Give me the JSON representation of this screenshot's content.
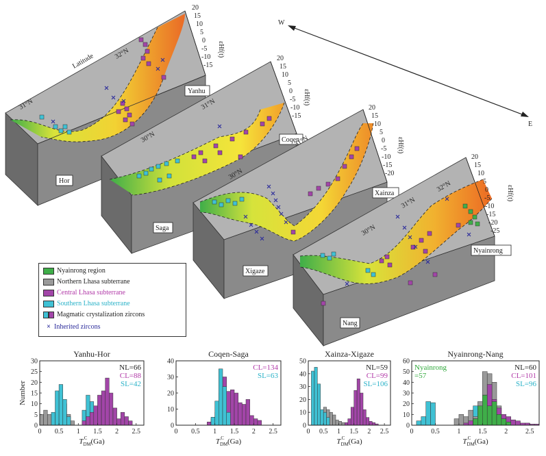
{
  "compass": {
    "w": "W",
    "e": "E"
  },
  "latitude_label": "Latitude",
  "eps_label": "εHf(t)",
  "panels": [
    {
      "name": "Yanhu",
      "start": "Hor",
      "lats": [
        "31°N",
        "32°N"
      ],
      "ticks": [
        "20",
        "15",
        "10",
        "5",
        "0",
        "-5",
        "-10",
        "-15"
      ]
    },
    {
      "name": "Coqen",
      "start": "Saga",
      "lats": [
        "30°N",
        "31°N"
      ],
      "ticks": [
        "20",
        "15",
        "10",
        "5",
        "0",
        "-5",
        "-10",
        "-15"
      ]
    },
    {
      "name": "Xainza",
      "start": "Xigaze",
      "lats": [
        "30°N",
        "31°N"
      ],
      "ticks": [
        "20",
        "15",
        "10",
        "5",
        "0",
        "-5",
        "-10",
        "-15",
        "-20"
      ]
    },
    {
      "name": "Nyainrong",
      "start": "Nang",
      "lats": [
        "30°N",
        "31°N",
        "32°N"
      ],
      "ticks": [
        "20",
        "15",
        "10",
        "5",
        "0",
        "-5",
        "-10",
        "-15",
        "-20",
        "-25"
      ]
    }
  ],
  "legend": [
    {
      "label": "Nyainrong region",
      "color": "#3fae49",
      "kind": "box"
    },
    {
      "label": "Northern  Lhasa subterrane",
      "color": "#9a9a9a",
      "kind": "box"
    },
    {
      "label": "Central  Lhasa subterrane",
      "color": "#a245a8",
      "kind": "box",
      "text_color": "#b23aa8"
    },
    {
      "label": "Southern  Lhasa subterrane",
      "color": "#3fc1d4",
      "kind": "box",
      "text_color": "#2ab2c8"
    },
    {
      "label": "Magmatic crystalization zircons",
      "color": "#3fc1d4",
      "kind": "double"
    },
    {
      "label": "Inherited zircons",
      "color": "#2a2a9a",
      "kind": "x",
      "text_color": "#2a2a9a"
    }
  ],
  "colors": {
    "nl": "#9a9a9a",
    "cl": "#a245a8",
    "sl": "#3fc1d4",
    "ny": "#3fae49",
    "cl_text": "#b23aa8",
    "sl_text": "#2ab2c8",
    "ny_text": "#2fa83a"
  },
  "chart_data": [
    {
      "type": "bar",
      "title": "Yanhu-Hor",
      "ylabel": "Number",
      "xlabel": "T_DM^C (Ga)",
      "xlim": [
        0,
        2.7
      ],
      "ylim": [
        0,
        30
      ],
      "bin_width": 0.1,
      "xticks": [
        "0",
        "0.5",
        "1",
        "1.5",
        "2",
        "2.5"
      ],
      "yticks": [
        "0",
        "5",
        "10",
        "15",
        "20",
        "25",
        "30"
      ],
      "stats": [
        {
          "text": "NL=66",
          "key": "nl"
        },
        {
          "text": "CL=88",
          "key": "cl"
        },
        {
          "text": "SL=42",
          "key": "sl"
        }
      ],
      "series": [
        {
          "key": "nl",
          "x": [
            0,
            0.1,
            0.2,
            0.3,
            0.4,
            0.5,
            0.6,
            0.7,
            0.8
          ],
          "values": [
            5,
            7,
            5,
            4,
            5,
            14,
            10,
            5,
            2
          ]
        },
        {
          "key": "sl",
          "x": [
            0.3,
            0.4,
            0.5,
            0.6,
            0.7,
            1.1,
            1.2,
            1.3
          ],
          "values": [
            6,
            16,
            19,
            12,
            4,
            7,
            14,
            11
          ]
        },
        {
          "key": "cl",
          "x": [
            1.1,
            1.2,
            1.3,
            1.4,
            1.5,
            1.6,
            1.7,
            1.8,
            1.9,
            2.0,
            2.1,
            2.2,
            2.3
          ],
          "values": [
            2,
            4,
            6,
            9,
            14,
            16,
            22,
            15,
            8,
            3,
            6,
            4,
            2
          ]
        }
      ]
    },
    {
      "type": "bar",
      "title": "Coqen-Saga",
      "ylabel": "",
      "xlabel": "T_DM^C (Ga)",
      "xlim": [
        0,
        2.7
      ],
      "ylim": [
        0,
        40
      ],
      "bin_width": 0.1,
      "xticks": [
        "0",
        "0.5",
        "1",
        "1.5",
        "2",
        "2.5"
      ],
      "yticks": [
        "0",
        "10",
        "20",
        "30",
        "40"
      ],
      "stats": [
        {
          "text": "CL=134",
          "key": "cl"
        },
        {
          "text": "SL=63",
          "key": "sl"
        }
      ],
      "series": [
        {
          "key": "cl",
          "x": [
            0.8,
            0.9,
            1.0,
            1.1,
            1.2,
            1.3,
            1.4,
            1.5,
            1.6,
            1.7,
            1.8,
            1.9,
            2.0,
            2.1
          ],
          "values": [
            2,
            4,
            8,
            20,
            30,
            21,
            22,
            20,
            14,
            13,
            16,
            6,
            4,
            3
          ]
        },
        {
          "key": "sl",
          "x": [
            0.9,
            1.0,
            1.1,
            1.2,
            1.3
          ],
          "values": [
            5,
            15,
            35,
            24,
            8
          ]
        }
      ]
    },
    {
      "type": "bar",
      "title": "Xainza-Xigaze",
      "ylabel": "",
      "xlabel": "T_DM^C (Ga)",
      "xlim": [
        0,
        2.7
      ],
      "ylim": [
        0,
        50
      ],
      "bin_width": 0.1,
      "xticks": [
        "0",
        "0.5",
        "1",
        "1.5",
        "2",
        "2.5"
      ],
      "yticks": [
        "0",
        "10",
        "20",
        "30",
        "40",
        "50"
      ],
      "stats": [
        {
          "text": "NL=59",
          "key": "nl"
        },
        {
          "text": "CL=99",
          "key": "cl"
        },
        {
          "text": "SL=106",
          "key": "sl"
        }
      ],
      "series": [
        {
          "key": "nl",
          "x": [
            0.3,
            0.4,
            0.5,
            0.6,
            0.7,
            0.8,
            0.9,
            1.0,
            1.1,
            1.2,
            1.3
          ],
          "values": [
            8,
            10,
            14,
            12,
            10,
            8,
            4,
            3,
            2,
            1,
            1
          ]
        },
        {
          "key": "sl",
          "x": [
            0.1,
            0.2,
            0.3,
            0.4,
            0.5,
            0.6
          ],
          "values": [
            42,
            45,
            32,
            12,
            10,
            6
          ]
        },
        {
          "key": "cl",
          "x": [
            1.2,
            1.3,
            1.4,
            1.5,
            1.6,
            1.7,
            1.8,
            1.9,
            2.0,
            2.1,
            2.2
          ],
          "values": [
            2,
            5,
            14,
            27,
            36,
            25,
            12,
            6,
            3,
            2,
            1
          ]
        }
      ]
    },
    {
      "type": "bar",
      "title": "Nyainrong-Nang",
      "ylabel": "",
      "xlabel": "T_DM^C (Ga)",
      "xlim": [
        0,
        2.7
      ],
      "ylim": [
        0,
        60
      ],
      "bin_width": 0.1,
      "xticks": [
        "0",
        "0.5",
        "1",
        "1.5",
        "2",
        "2.5"
      ],
      "yticks": [
        "0",
        "10",
        "20",
        "30",
        "40",
        "50",
        "60"
      ],
      "stats": [
        {
          "text": "Nyainrong",
          "key": "ny"
        },
        {
          "text": "=57",
          "key": "ny"
        },
        {
          "text": "NL=60",
          "key": "nl"
        },
        {
          "text": "CL=101",
          "key": "cl"
        },
        {
          "text": "SL=96",
          "key": "sl"
        }
      ],
      "series": [
        {
          "key": "sl",
          "x": [
            0.1,
            0.2,
            0.3,
            0.4,
            1.2,
            1.3,
            1.4,
            1.5
          ],
          "values": [
            4,
            8,
            22,
            21,
            6,
            18,
            10,
            4
          ]
        },
        {
          "key": "nl",
          "x": [
            0.9,
            1.0,
            1.1,
            1.2,
            1.3,
            1.4,
            1.5,
            1.6,
            1.7,
            1.8
          ],
          "values": [
            6,
            10,
            8,
            14,
            8,
            22,
            50,
            48,
            40,
            18
          ]
        },
        {
          "key": "cl",
          "x": [
            1.1,
            1.2,
            1.3,
            1.4,
            1.5,
            1.6,
            1.7,
            1.8,
            1.9,
            2.0,
            2.1,
            2.2,
            2.3,
            2.4,
            2.5,
            2.6
          ],
          "values": [
            2,
            4,
            6,
            12,
            28,
            38,
            24,
            16,
            10,
            8,
            5,
            4,
            2,
            2,
            1,
            1
          ]
        },
        {
          "key": "ny",
          "x": [
            1.3,
            1.4,
            1.5,
            1.6,
            1.7,
            1.8,
            1.9,
            2.0
          ],
          "values": [
            6,
            18,
            28,
            18,
            22,
            10,
            6,
            3
          ]
        }
      ]
    }
  ]
}
